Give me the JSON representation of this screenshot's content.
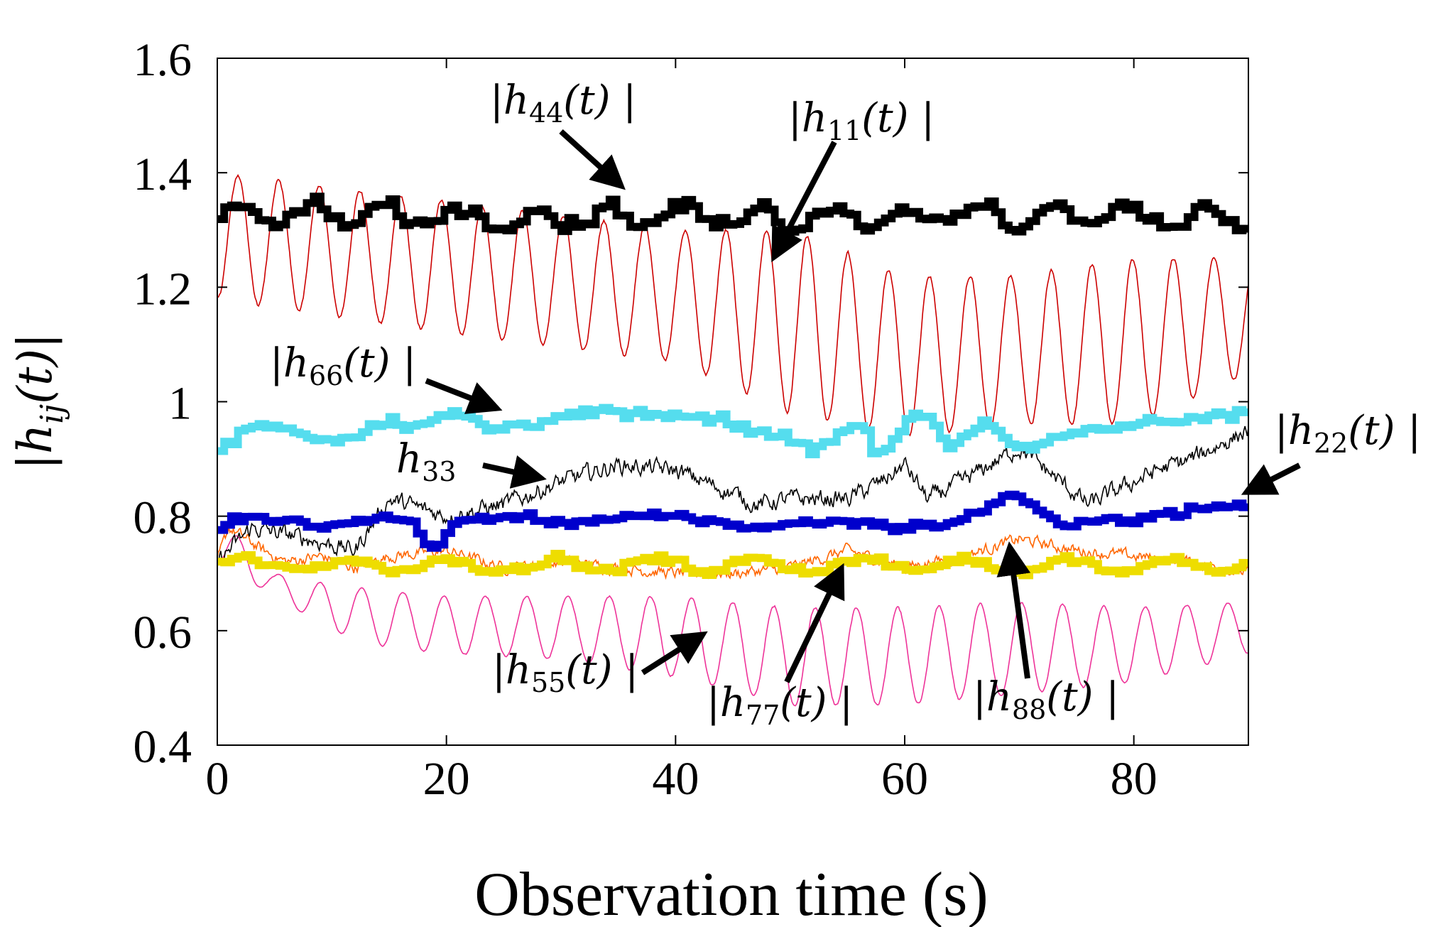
{
  "chart_data": {
    "type": "line",
    "title": "",
    "xlabel": "Observation time (s)",
    "ylabel": "|h_ij(t)|",
    "ylabel_main": "|h",
    "ylabel_sub": "ij",
    "ylabel_rest": "(t)|",
    "xlim": [
      0,
      90
    ],
    "ylim": [
      0.4,
      1.6
    ],
    "x_ticks": [
      0,
      20,
      40,
      60,
      80
    ],
    "x_tick_labels": [
      "0",
      "20",
      "40",
      "60",
      "80"
    ],
    "y_ticks": [
      0.4,
      0.6,
      0.8,
      1.0,
      1.2,
      1.4,
      1.6
    ],
    "y_tick_labels": [
      "0.4",
      "0.6",
      "0.8",
      "1",
      "1.2",
      "1.4",
      "1.6"
    ],
    "grid": false,
    "series": [
      {
        "name": "|h44(t)|",
        "key": "h44",
        "color": "#000000",
        "style": "thick-step",
        "base": 1.325,
        "amp": 0.018,
        "period": 6.5,
        "noise": 0.012,
        "trend": 0.005
      },
      {
        "name": "|h11(t)|",
        "key": "h11",
        "color": "#cc0000",
        "style": "thin-oscillation",
        "upper": [
          [
            0,
            1.4
          ],
          [
            20,
            1.35
          ],
          [
            40,
            1.3
          ],
          [
            50,
            1.3
          ],
          [
            60,
            1.22
          ],
          [
            70,
            1.22
          ],
          [
            80,
            1.25
          ],
          [
            90,
            1.25
          ]
        ],
        "lower": [
          [
            0,
            1.18
          ],
          [
            10,
            1.15
          ],
          [
            20,
            1.12
          ],
          [
            40,
            1.07
          ],
          [
            50,
            0.98
          ],
          [
            60,
            0.94
          ],
          [
            70,
            0.96
          ],
          [
            80,
            0.96
          ],
          [
            90,
            1.05
          ]
        ],
        "period": 3.55
      },
      {
        "name": "|h66(t)|",
        "key": "h66",
        "color": "#55ddee",
        "style": "thick-step",
        "points": [
          [
            0,
            0.91
          ],
          [
            3,
            0.96
          ],
          [
            7,
            0.95
          ],
          [
            10,
            0.93
          ],
          [
            15,
            0.97
          ],
          [
            18,
            0.96
          ],
          [
            21,
            0.98
          ],
          [
            24,
            0.95
          ],
          [
            28,
            0.97
          ],
          [
            35,
            0.98
          ],
          [
            42,
            0.97
          ],
          [
            47,
            0.95
          ],
          [
            52,
            0.92
          ],
          [
            56,
            0.96
          ],
          [
            58,
            0.91
          ],
          [
            61,
            0.99
          ],
          [
            64,
            0.92
          ],
          [
            67,
            0.97
          ],
          [
            70,
            0.92
          ],
          [
            75,
            0.94
          ],
          [
            80,
            0.96
          ],
          [
            85,
            0.97
          ],
          [
            90,
            0.99
          ]
        ],
        "noise": 0.012
      },
      {
        "name": "h33",
        "key": "h33",
        "color": "#000000",
        "style": "thin",
        "points": [
          [
            0,
            0.72
          ],
          [
            3,
            0.78
          ],
          [
            8,
            0.76
          ],
          [
            12,
            0.74
          ],
          [
            15,
            0.83
          ],
          [
            20,
            0.8
          ],
          [
            25,
            0.82
          ],
          [
            30,
            0.86
          ],
          [
            35,
            0.89
          ],
          [
            40,
            0.88
          ],
          [
            45,
            0.84
          ],
          [
            47,
            0.82
          ],
          [
            50,
            0.83
          ],
          [
            55,
            0.83
          ],
          [
            58,
            0.86
          ],
          [
            60,
            0.89
          ],
          [
            62,
            0.83
          ],
          [
            65,
            0.86
          ],
          [
            70,
            0.92
          ],
          [
            73,
            0.87
          ],
          [
            76,
            0.82
          ],
          [
            78,
            0.84
          ],
          [
            82,
            0.88
          ],
          [
            85,
            0.9
          ],
          [
            90,
            0.95
          ]
        ],
        "noise": 0.012
      },
      {
        "name": "|h22(t)|",
        "key": "h22",
        "color": "#0000cc",
        "style": "thick-step",
        "points": [
          [
            0,
            0.77
          ],
          [
            2,
            0.8
          ],
          [
            6,
            0.79
          ],
          [
            10,
            0.78
          ],
          [
            14,
            0.8
          ],
          [
            17,
            0.79
          ],
          [
            19,
            0.74
          ],
          [
            21,
            0.79
          ],
          [
            25,
            0.8
          ],
          [
            30,
            0.79
          ],
          [
            40,
            0.8
          ],
          [
            47,
            0.78
          ],
          [
            52,
            0.79
          ],
          [
            56,
            0.79
          ],
          [
            60,
            0.78
          ],
          [
            65,
            0.79
          ],
          [
            69,
            0.84
          ],
          [
            72,
            0.81
          ],
          [
            74,
            0.78
          ],
          [
            77,
            0.79
          ],
          [
            81,
            0.8
          ],
          [
            85,
            0.81
          ],
          [
            90,
            0.82
          ]
        ],
        "noise": 0.008
      },
      {
        "name": "|h88(t)|",
        "key": "h88",
        "color": "#ff6600",
        "style": "thin",
        "points": [
          [
            0,
            0.72
          ],
          [
            1,
            0.78
          ],
          [
            4,
            0.74
          ],
          [
            6,
            0.72
          ],
          [
            9,
            0.73
          ],
          [
            12,
            0.71
          ],
          [
            15,
            0.73
          ],
          [
            20,
            0.74
          ],
          [
            25,
            0.71
          ],
          [
            30,
            0.72
          ],
          [
            35,
            0.71
          ],
          [
            40,
            0.7
          ],
          [
            45,
            0.7
          ],
          [
            50,
            0.71
          ],
          [
            55,
            0.74
          ],
          [
            60,
            0.71
          ],
          [
            65,
            0.73
          ],
          [
            70,
            0.76
          ],
          [
            75,
            0.74
          ],
          [
            80,
            0.73
          ],
          [
            85,
            0.72
          ],
          [
            90,
            0.7
          ]
        ],
        "noise": 0.008
      },
      {
        "name": "|h77(t)|",
        "key": "h77",
        "color": "#eedd00",
        "style": "thick-step",
        "base": 0.715,
        "amp": 0.01,
        "period": 9.0,
        "noise": 0.007,
        "trend": 0.0
      },
      {
        "name": "|h55(t)|",
        "key": "h55",
        "color": "#ee3399",
        "style": "thin-oscillation",
        "upper": [
          [
            0,
            0.8
          ],
          [
            5,
            0.7
          ],
          [
            10,
            0.68
          ],
          [
            20,
            0.66
          ],
          [
            30,
            0.66
          ],
          [
            40,
            0.66
          ],
          [
            50,
            0.64
          ],
          [
            60,
            0.64
          ],
          [
            70,
            0.65
          ],
          [
            80,
            0.64
          ],
          [
            90,
            0.65
          ]
        ],
        "lower": [
          [
            0,
            0.72
          ],
          [
            5,
            0.66
          ],
          [
            10,
            0.6
          ],
          [
            15,
            0.57
          ],
          [
            20,
            0.56
          ],
          [
            30,
            0.55
          ],
          [
            40,
            0.52
          ],
          [
            50,
            0.47
          ],
          [
            60,
            0.47
          ],
          [
            70,
            0.49
          ],
          [
            80,
            0.51
          ],
          [
            90,
            0.56
          ]
        ],
        "period": 3.6
      }
    ],
    "annotations": [
      {
        "key": "h44",
        "label": "|h",
        "sub": "44",
        "rest": "(t) |"
      },
      {
        "key": "h11",
        "label": "|h",
        "sub": "11",
        "rest": "(t) |"
      },
      {
        "key": "h66",
        "label": "|h",
        "sub": "66",
        "rest": "(t) |"
      },
      {
        "key": "h33",
        "label": "h",
        "sub": "33",
        "rest": ""
      },
      {
        "key": "h22",
        "label": "|h",
        "sub": "22",
        "rest": "(t) |"
      },
      {
        "key": "h55",
        "label": "|h",
        "sub": "55",
        "rest": "(t) |"
      },
      {
        "key": "h77",
        "label": "|h",
        "sub": "77",
        "rest": "(t) |"
      },
      {
        "key": "h88",
        "label": "|h",
        "sub": "88",
        "rest": "(t) |"
      }
    ]
  }
}
